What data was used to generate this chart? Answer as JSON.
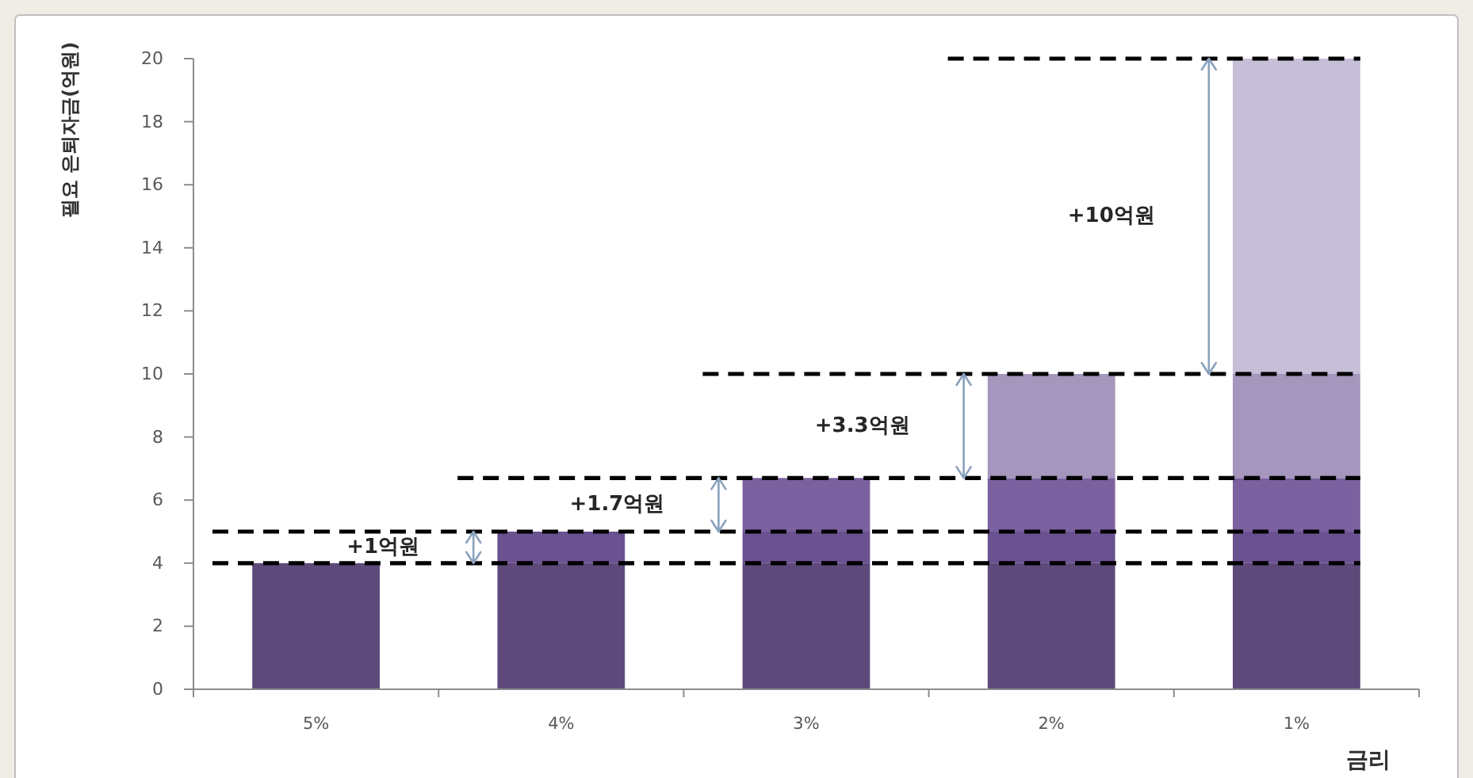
{
  "chart_data": {
    "type": "bar",
    "stacked": true,
    "xlabel": "금리",
    "ylabel": "필요 은퇴자금(억원)",
    "categories": [
      "5%",
      "4%",
      "3%",
      "2%",
      "1%"
    ],
    "series": [
      {
        "color": "#5e4a7a",
        "values": [
          4,
          4,
          4,
          4,
          4
        ]
      },
      {
        "color": "#6a5190",
        "values": [
          null,
          1,
          1,
          1,
          1
        ]
      },
      {
        "color": "#7b61a0",
        "values": [
          null,
          null,
          1.7,
          1.7,
          1.7
        ]
      },
      {
        "color": "#a596bd",
        "values": [
          null,
          null,
          null,
          3.3,
          3.3
        ]
      },
      {
        "color": "#c7bfd8",
        "values": [
          null,
          null,
          null,
          null,
          10
        ]
      }
    ],
    "ylim": [
      0,
      20
    ],
    "yticks": [
      0,
      2,
      4,
      6,
      8,
      10,
      12,
      14,
      16,
      18,
      20
    ],
    "ref_lines": [
      {
        "axis": "y",
        "value": 4,
        "color": "#000000",
        "line_style": "dashed"
      },
      {
        "axis": "y",
        "value": 5,
        "color": "#000000",
        "line_style": "dashed"
      },
      {
        "axis": "y",
        "value": 6.7,
        "color": "#000000",
        "line_style": "dashed"
      },
      {
        "axis": "y",
        "value": 10,
        "color": "#000000",
        "line_style": "dashed"
      },
      {
        "axis": "y",
        "value": 20,
        "color": "#000000",
        "line_style": "dashed"
      }
    ],
    "annotations": [
      "+1억원",
      "+1.7억원",
      "+3.3억원",
      "+10억원"
    ]
  }
}
